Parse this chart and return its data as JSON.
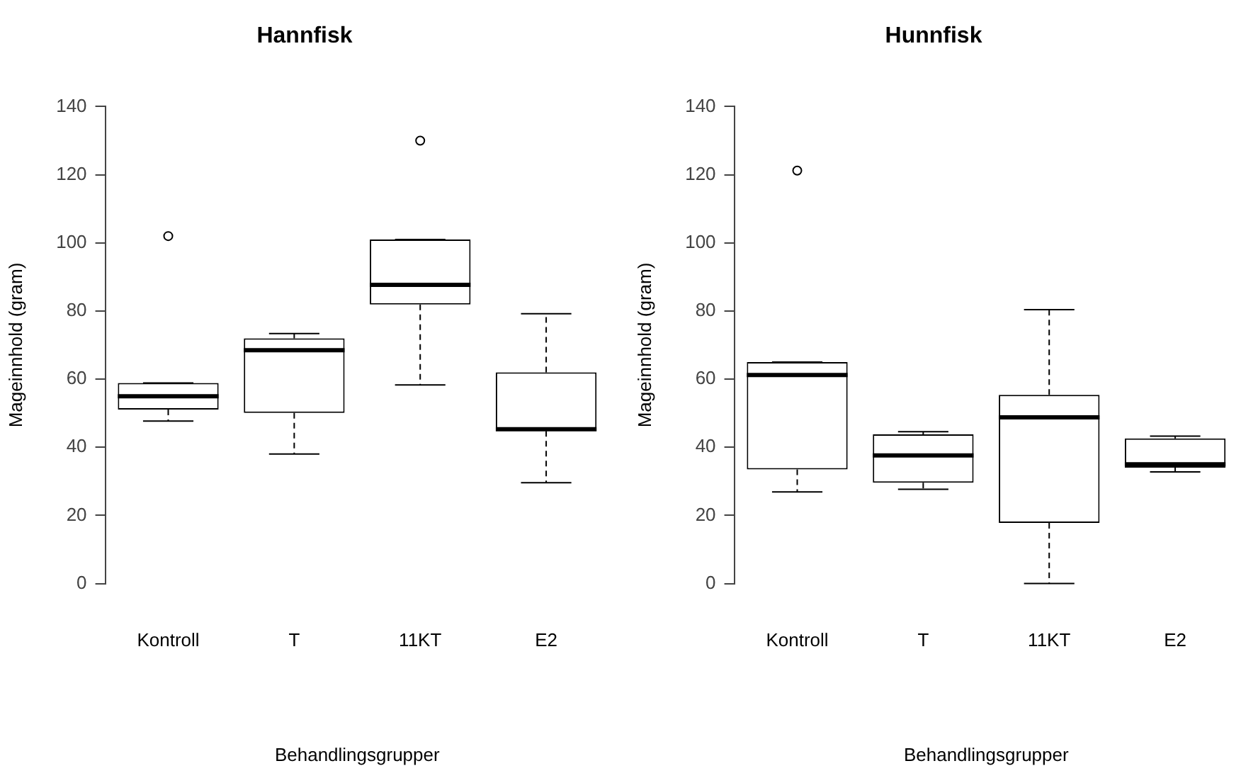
{
  "chart_data": [
    {
      "type": "box",
      "title": "Hannfisk",
      "xlabel": "Behandlingsgrupper",
      "ylabel": "Mageinnhold (gram)",
      "categories": [
        "Kontroll",
        "T",
        "11KT",
        "E2"
      ],
      "ylim": [
        0,
        140
      ],
      "yticks": [
        0,
        20,
        40,
        60,
        80,
        100,
        120,
        140
      ],
      "boxes": [
        {
          "low": 47.7,
          "q1": 51.1,
          "median": 55,
          "q3": 58.9,
          "high": 58.9,
          "outliers": [
            102
          ]
        },
        {
          "low": 38,
          "q1": 50.1,
          "median": 68.5,
          "q3": 72,
          "high": 73.4
        },
        {
          "low": 58.3,
          "q1": 81.9,
          "median": 87.7,
          "q3": 101,
          "high": 101,
          "outliers": [
            130
          ]
        },
        {
          "low": 29.6,
          "q1": 44.8,
          "median": 45.3,
          "q3": 62,
          "high": 79.2
        }
      ]
    },
    {
      "type": "box",
      "title": "Hunnfisk",
      "xlabel": "Behandlingsgrupper",
      "ylabel": "Mageinnhold (gram)",
      "categories": [
        "Kontroll",
        "T",
        "11KT",
        "E2"
      ],
      "ylim": [
        0,
        140
      ],
      "yticks": [
        0,
        20,
        40,
        60,
        80,
        100,
        120,
        140
      ],
      "boxes": [
        {
          "low": 26.9,
          "q1": 33.5,
          "median": 61.2,
          "q3": 65,
          "high": 65,
          "outliers": [
            121.2
          ]
        },
        {
          "low": 27.7,
          "q1": 29.6,
          "median": 37.6,
          "q3": 43.8,
          "high": 44.6
        },
        {
          "low": 0,
          "q1": 17.8,
          "median": 48.8,
          "q3": 55.4,
          "high": 80.4
        },
        {
          "low": 32.8,
          "q1": 34,
          "median": 35,
          "q3": 42.6,
          "high": 43.3
        }
      ]
    }
  ]
}
